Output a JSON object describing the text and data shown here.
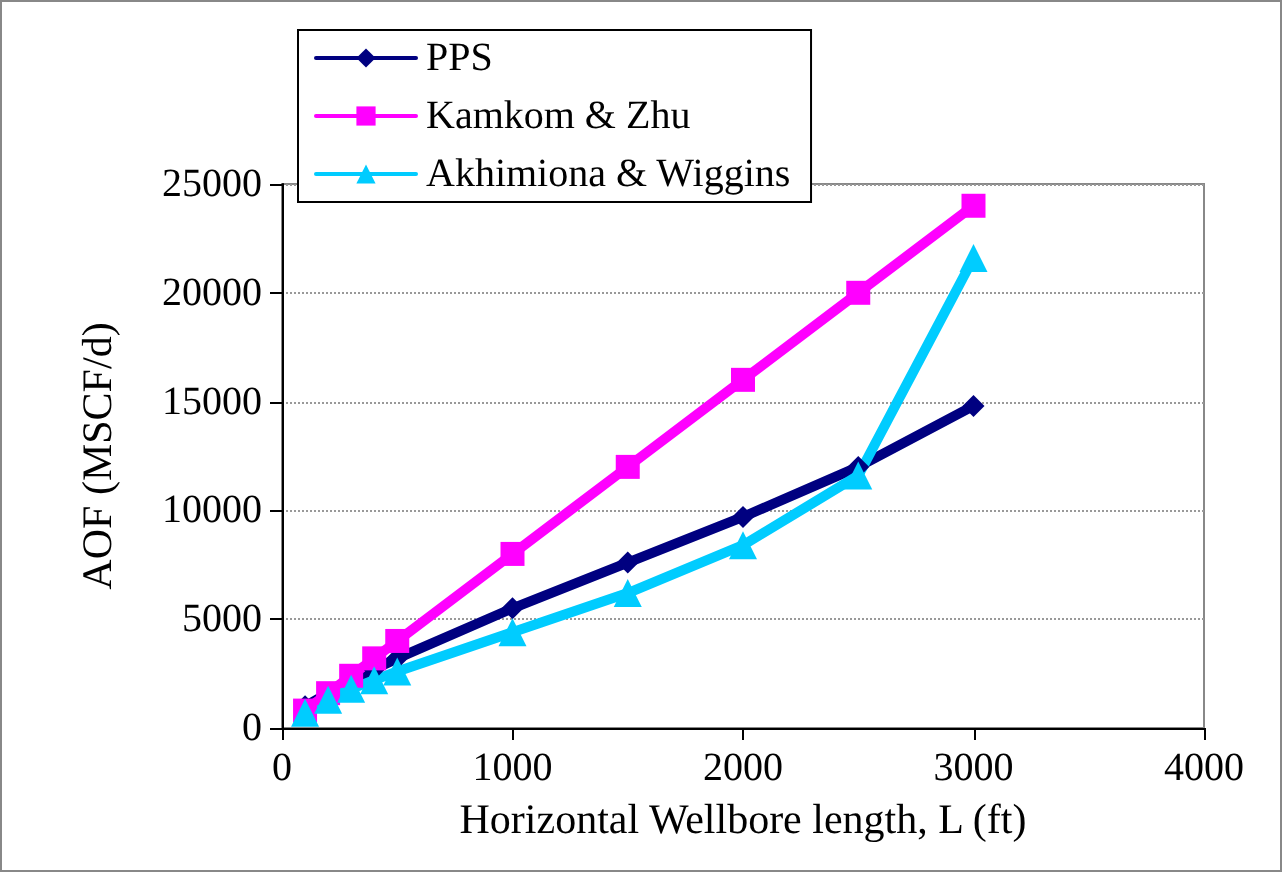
{
  "chart_data": {
    "type": "line",
    "xlabel": "Horizontal Wellbore length, L (ft)",
    "ylabel": "AOF (MSCF/d)",
    "x": [
      100,
      200,
      300,
      400,
      500,
      1000,
      1500,
      2000,
      2500,
      3000
    ],
    "series": [
      {
        "name": "PPS",
        "color": "#000080",
        "marker": "diamond",
        "values": [
          1000,
          1600,
          2200,
          2700,
          3200,
          5500,
          7600,
          9700,
          12000,
          14800
        ]
      },
      {
        "name": "Kamkom & Zhu",
        "color": "#ff00ff",
        "marker": "square",
        "values": [
          800,
          1600,
          2400,
          3200,
          4000,
          8000,
          12000,
          16000,
          20000,
          24000
        ]
      },
      {
        "name": "Akhimiona & Wiggins",
        "color": "#00ccff",
        "marker": "triangle",
        "values": [
          700,
          1300,
          1800,
          2200,
          2600,
          4400,
          6200,
          8400,
          11600,
          21600
        ]
      }
    ],
    "xlim": [
      0,
      4000
    ],
    "xticks": [
      0,
      1000,
      2000,
      3000,
      4000
    ],
    "ylim": [
      0,
      25000
    ],
    "yticks": [
      0,
      5000,
      10000,
      15000,
      20000,
      25000
    ],
    "grid": "y",
    "legend": "top left"
  }
}
